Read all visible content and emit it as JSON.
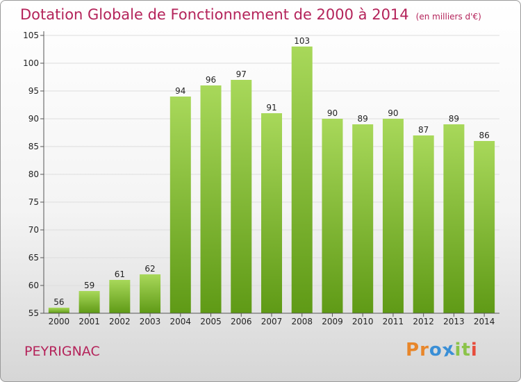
{
  "title": "Dotation Globale de Fonctionnement de 2000 à 2014",
  "unit_label": "(en milliers d'€)",
  "commune": "PEYRIGNAC",
  "logo": {
    "letters": [
      "P",
      "r",
      "o",
      "x",
      "i",
      "t",
      "i"
    ],
    "colors": [
      "#e8862a",
      "#e8862a",
      "#3a8fd6",
      "#3a8fd6",
      "#8bc34a",
      "#8bc34a",
      "#e74c3c"
    ]
  },
  "colors": {
    "bar_light": "#a8d85a",
    "bar_dark": "#5f9a16",
    "axis": "#555555",
    "grid": "#dddddd"
  },
  "chart_data": {
    "type": "bar",
    "title": "Dotation Globale de Fonctionnement de 2000 à 2014",
    "xlabel": "",
    "ylabel": "",
    "ylim": [
      55,
      105
    ],
    "yticks": [
      55,
      60,
      65,
      70,
      75,
      80,
      85,
      90,
      95,
      100,
      105
    ],
    "categories": [
      "2000",
      "2001",
      "2002",
      "2003",
      "2004",
      "2005",
      "2006",
      "2007",
      "2008",
      "2009",
      "2010",
      "2011",
      "2012",
      "2013",
      "2014"
    ],
    "values": [
      56,
      59,
      61,
      62,
      94,
      96,
      97,
      91,
      103,
      90,
      89,
      90,
      87,
      89,
      86
    ],
    "grid": true,
    "legend": "none"
  }
}
